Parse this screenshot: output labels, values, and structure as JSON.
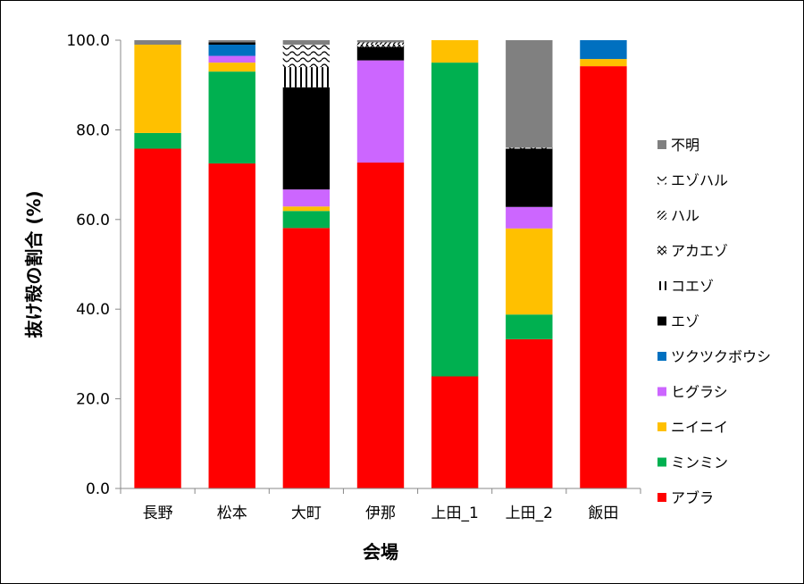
{
  "chart_data": {
    "type": "bar",
    "stacked": true,
    "xlabel": "会場",
    "ylabel": "抜け殻の割合 (%)",
    "ylim": [
      0,
      100
    ],
    "yticks": [
      "0.0",
      "20.0",
      "40.0",
      "60.0",
      "80.0",
      "100.0"
    ],
    "grid": false,
    "legend_position": "right",
    "categories": [
      "長野",
      "松本",
      "大町",
      "伊那",
      "上田_1",
      "上田_2",
      "飯田"
    ],
    "series": [
      {
        "name": "アブラ",
        "color": "#ff0000",
        "pattern": "solid",
        "values": [
          75.8,
          72.5,
          58.1,
          72.7,
          25.0,
          33.3,
          94.2
        ]
      },
      {
        "name": "ミンミン",
        "color": "#00b050",
        "pattern": "solid",
        "values": [
          3.5,
          20.5,
          3.8,
          0,
          70.0,
          5.5,
          0
        ]
      },
      {
        "name": "ニイニイ",
        "color": "#ffc000",
        "pattern": "solid",
        "values": [
          19.7,
          2.0,
          1.0,
          0,
          5.0,
          19.2,
          1.6
        ]
      },
      {
        "name": "ヒグラシ",
        "color": "#cc66ff",
        "pattern": "solid",
        "values": [
          0,
          1.5,
          3.8,
          22.8,
          0,
          4.8,
          0
        ]
      },
      {
        "name": "ツクツクボウシ",
        "color": "#0070c0",
        "pattern": "solid",
        "values": [
          0,
          2.5,
          0,
          0,
          0,
          0,
          4.2
        ]
      },
      {
        "name": "エゾ",
        "color": "#000000",
        "pattern": "solid",
        "values": [
          0,
          0.5,
          22.8,
          3.0,
          0,
          13.0,
          0
        ]
      },
      {
        "name": "コエゾ",
        "color": "#000000",
        "pattern": "vertical",
        "values": [
          0,
          0,
          4.5,
          0,
          0,
          0,
          0
        ]
      },
      {
        "name": "アカエゾ",
        "color": "#000000",
        "pattern": "cross",
        "values": [
          0,
          0,
          0,
          0.5,
          0,
          0,
          0
        ]
      },
      {
        "name": "ハル",
        "color": "#000000",
        "pattern": "diagonal",
        "values": [
          0,
          0,
          0,
          0.5,
          0,
          0,
          0
        ]
      },
      {
        "name": "エゾハル",
        "color": "#000000",
        "pattern": "wave",
        "values": [
          0,
          0,
          5.0,
          0,
          0,
          0.2,
          0
        ]
      },
      {
        "name": "不明",
        "color": "#808080",
        "pattern": "solid",
        "values": [
          1.0,
          0.5,
          1.0,
          0.5,
          0,
          24.0,
          0
        ]
      }
    ]
  }
}
